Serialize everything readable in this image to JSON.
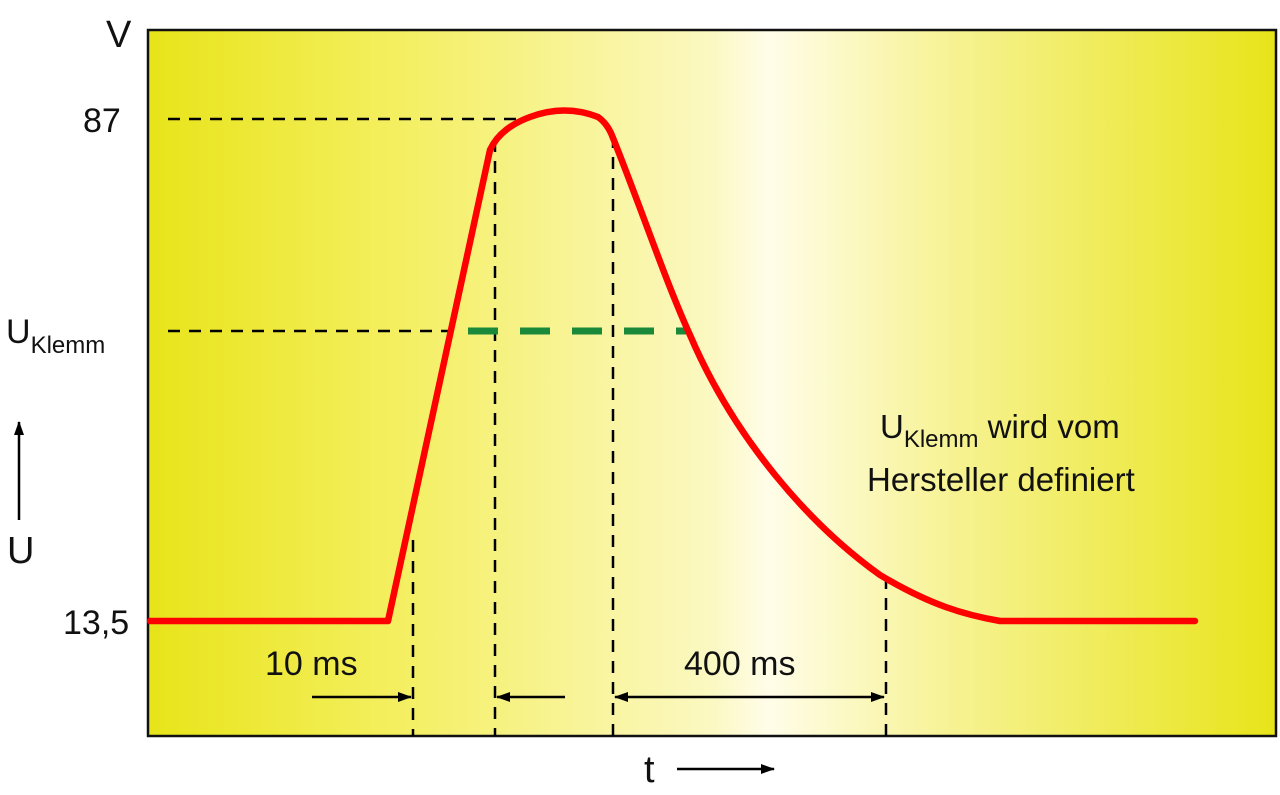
{
  "axes": {
    "y_unit": "V",
    "y_name": "U",
    "x_name": "t"
  },
  "levels": {
    "peak": "87",
    "clamp_main": "U",
    "clamp_sub": "Klemm",
    "base": "13,5"
  },
  "durations": {
    "rise": "10 ms",
    "decay": "400 ms"
  },
  "note": {
    "line1_main": "U",
    "line1_sub": "Klemm",
    "line1_rest": " wird vom",
    "line2": "Hersteller definiert"
  },
  "colors": {
    "curve": "#ff0000",
    "clamp_line": "#1a8a3a",
    "guide_lines": "#000000",
    "background_edge": "#e8e419",
    "background_center": "#fffde8"
  }
}
